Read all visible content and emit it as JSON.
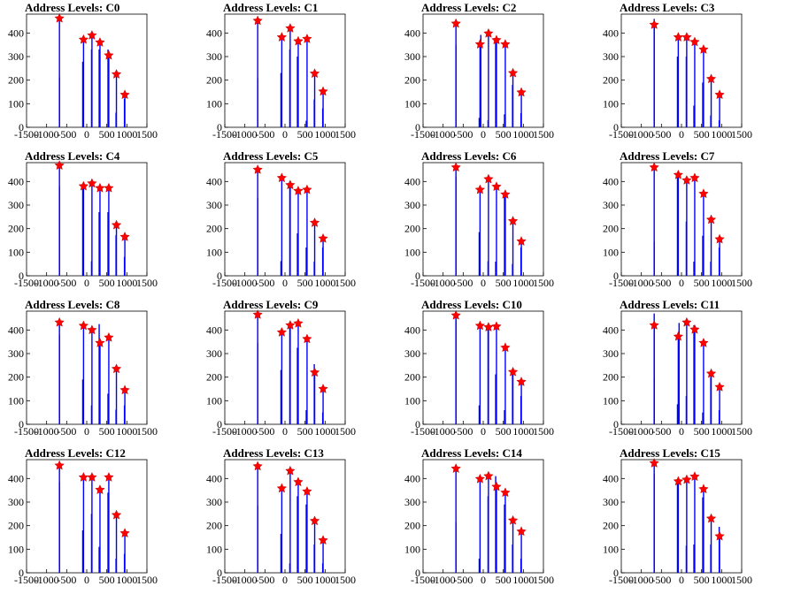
{
  "figure": {
    "title_prefix": "Address Levels: ",
    "x_ticks": [
      -1500,
      -1000,
      -500,
      0,
      500,
      1000,
      1500
    ],
    "x_tick_labels": [
      "-1500",
      "-1000",
      "-500",
      "0",
      "500",
      "1000",
      "1500"
    ],
    "y_ticks": [
      0,
      100,
      200,
      300,
      400
    ],
    "y_tick_labels": [
      "0",
      "100",
      "200",
      "300",
      "400"
    ],
    "colors": {
      "spike": "#0000ff",
      "marker": "#ff0000",
      "axis": "#000000"
    }
  },
  "chart_data": [
    {
      "type": "bar",
      "title": "Address Levels: C0",
      "xlim": [
        -1500,
        1500
      ],
      "ylim": [
        0,
        480
      ],
      "grid": false,
      "peaks_x": [
        -680,
        -80,
        130,
        330,
        550,
        740,
        950
      ],
      "peaks_y": [
        462,
        372,
        390,
        360,
        305,
        225,
        138
      ],
      "spikes": [
        [
          -680,
          462
        ],
        [
          -680,
          212
        ],
        [
          -100,
          278
        ],
        [
          -80,
          372
        ],
        [
          120,
          330
        ],
        [
          130,
          390
        ],
        [
          310,
          330
        ],
        [
          330,
          360
        ],
        [
          530,
          330
        ],
        [
          550,
          305
        ],
        [
          730,
          62
        ],
        [
          740,
          225
        ],
        [
          940,
          120
        ],
        [
          950,
          138
        ]
      ]
    },
    {
      "type": "bar",
      "title": "Address Levels: C1",
      "xlim": [
        -1500,
        1500
      ],
      "ylim": [
        0,
        480
      ],
      "grid": false,
      "peaks_x": [
        -680,
        -80,
        130,
        330,
        550,
        740,
        950
      ],
      "peaks_y": [
        452,
        382,
        420,
        365,
        375,
        228,
        152
      ],
      "spikes": [
        [
          -680,
          452
        ],
        [
          -680,
          208
        ],
        [
          -100,
          230
        ],
        [
          -80,
          382
        ],
        [
          120,
          330
        ],
        [
          130,
          420
        ],
        [
          310,
          300
        ],
        [
          330,
          365
        ],
        [
          530,
          28
        ],
        [
          550,
          375
        ],
        [
          730,
          118
        ],
        [
          740,
          228
        ],
        [
          940,
          80
        ],
        [
          950,
          152
        ]
      ]
    },
    {
      "type": "bar",
      "title": "Address Levels: C2",
      "xlim": [
        -1500,
        1500
      ],
      "ylim": [
        0,
        480
      ],
      "grid": false,
      "peaks_x": [
        -680,
        -80,
        130,
        330,
        550,
        740,
        950
      ],
      "peaks_y": [
        440,
        352,
        398,
        370,
        352,
        230,
        148
      ],
      "spikes": [
        [
          -680,
          440
        ],
        [
          -680,
          350
        ],
        [
          -100,
          40
        ],
        [
          -80,
          352
        ],
        [
          -60,
          392
        ],
        [
          120,
          30
        ],
        [
          130,
          398
        ],
        [
          310,
          360
        ],
        [
          330,
          370
        ],
        [
          530,
          55
        ],
        [
          550,
          352
        ],
        [
          730,
          180
        ],
        [
          740,
          230
        ],
        [
          940,
          60
        ],
        [
          950,
          148
        ]
      ]
    },
    {
      "type": "bar",
      "title": "Address Levels: C3",
      "xlim": [
        -1500,
        1500
      ],
      "ylim": [
        0,
        480
      ],
      "grid": false,
      "peaks_x": [
        -680,
        -80,
        130,
        330,
        550,
        740,
        950
      ],
      "peaks_y": [
        435,
        382,
        382,
        362,
        330,
        205,
        138
      ],
      "spikes": [
        [
          -680,
          435
        ],
        [
          -680,
          460
        ],
        [
          -100,
          300
        ],
        [
          -80,
          382
        ],
        [
          120,
          300
        ],
        [
          130,
          382
        ],
        [
          310,
          92
        ],
        [
          330,
          362
        ],
        [
          530,
          190
        ],
        [
          550,
          330
        ],
        [
          730,
          50
        ],
        [
          740,
          205
        ],
        [
          940,
          30
        ],
        [
          950,
          138
        ]
      ]
    },
    {
      "type": "bar",
      "title": "Address Levels: C4",
      "xlim": [
        -1500,
        1500
      ],
      "ylim": [
        0,
        480
      ],
      "grid": false,
      "peaks_x": [
        -680,
        -80,
        130,
        330,
        550,
        740,
        950
      ],
      "peaks_y": [
        468,
        380,
        392,
        372,
        372,
        215,
        165
      ],
      "spikes": [
        [
          -680,
          468
        ],
        [
          -680,
          380
        ],
        [
          -100,
          375
        ],
        [
          -80,
          380
        ],
        [
          120,
          62
        ],
        [
          130,
          392
        ],
        [
          310,
          270
        ],
        [
          330,
          372
        ],
        [
          530,
          270
        ],
        [
          550,
          372
        ],
        [
          730,
          172
        ],
        [
          740,
          215
        ],
        [
          940,
          80
        ],
        [
          950,
          165
        ]
      ]
    },
    {
      "type": "bar",
      "title": "Address Levels: C5",
      "xlim": [
        -1500,
        1500
      ],
      "ylim": [
        0,
        480
      ],
      "grid": false,
      "peaks_x": [
        -680,
        -80,
        130,
        330,
        550,
        740,
        950
      ],
      "peaks_y": [
        450,
        415,
        385,
        360,
        365,
        225,
        158
      ],
      "spikes": [
        [
          -680,
          450
        ],
        [
          -680,
          330
        ],
        [
          -100,
          62
        ],
        [
          -80,
          415
        ],
        [
          120,
          400
        ],
        [
          130,
          385
        ],
        [
          310,
          180
        ],
        [
          330,
          360
        ],
        [
          530,
          120
        ],
        [
          550,
          365
        ],
        [
          730,
          60
        ],
        [
          740,
          225
        ],
        [
          940,
          120
        ],
        [
          950,
          158
        ]
      ]
    },
    {
      "type": "bar",
      "title": "Address Levels: C6",
      "xlim": [
        -1500,
        1500
      ],
      "ylim": [
        0,
        480
      ],
      "grid": false,
      "peaks_x": [
        -680,
        -80,
        130,
        330,
        550,
        740,
        950
      ],
      "peaks_y": [
        460,
        365,
        410,
        378,
        345,
        232,
        146
      ],
      "spikes": [
        [
          -680,
          460
        ],
        [
          -680,
          420
        ],
        [
          -100,
          185
        ],
        [
          -80,
          365
        ],
        [
          120,
          62
        ],
        [
          130,
          410
        ],
        [
          310,
          60
        ],
        [
          330,
          378
        ],
        [
          530,
          340
        ],
        [
          550,
          345
        ],
        [
          730,
          50
        ],
        [
          740,
          232
        ],
        [
          940,
          120
        ],
        [
          950,
          146
        ]
      ]
    },
    {
      "type": "bar",
      "title": "Address Levels: C7",
      "xlim": [
        -1500,
        1500
      ],
      "ylim": [
        0,
        480
      ],
      "grid": false,
      "peaks_x": [
        -680,
        -80,
        130,
        330,
        550,
        740,
        950
      ],
      "peaks_y": [
        460,
        428,
        405,
        415,
        348,
        238,
        155
      ],
      "spikes": [
        [
          -680,
          460
        ],
        [
          -680,
          145
        ],
        [
          -100,
          420
        ],
        [
          -80,
          428
        ],
        [
          120,
          230
        ],
        [
          130,
          405
        ],
        [
          310,
          60
        ],
        [
          330,
          415
        ],
        [
          530,
          170
        ],
        [
          550,
          348
        ],
        [
          730,
          60
        ],
        [
          740,
          238
        ],
        [
          940,
          120
        ],
        [
          950,
          155
        ]
      ]
    },
    {
      "type": "bar",
      "title": "Address Levels: C8",
      "xlim": [
        -1500,
        1500
      ],
      "ylim": [
        0,
        480
      ],
      "grid": false,
      "peaks_x": [
        -680,
        -80,
        130,
        330,
        550,
        740,
        950
      ],
      "peaks_y": [
        432,
        418,
        400,
        345,
        368,
        235,
        145
      ],
      "spikes": [
        [
          -680,
          432
        ],
        [
          -680,
          380
        ],
        [
          -100,
          190
        ],
        [
          -80,
          418
        ],
        [
          120,
          80
        ],
        [
          130,
          400
        ],
        [
          310,
          425
        ],
        [
          330,
          345
        ],
        [
          530,
          130
        ],
        [
          550,
          368
        ],
        [
          730,
          62
        ],
        [
          740,
          235
        ],
        [
          940,
          80
        ],
        [
          950,
          145
        ]
      ]
    },
    {
      "type": "bar",
      "title": "Address Levels: C9",
      "xlim": [
        -1500,
        1500
      ],
      "ylim": [
        0,
        480
      ],
      "grid": false,
      "peaks_x": [
        -680,
        -80,
        130,
        330,
        550,
        740,
        950
      ],
      "peaks_y": [
        465,
        390,
        420,
        428,
        362,
        220,
        150
      ],
      "spikes": [
        [
          -680,
          465
        ],
        [
          -680,
          345
        ],
        [
          -100,
          230
        ],
        [
          -80,
          390
        ],
        [
          120,
          418
        ],
        [
          130,
          420
        ],
        [
          310,
          325
        ],
        [
          330,
          428
        ],
        [
          530,
          60
        ],
        [
          550,
          362
        ],
        [
          730,
          255
        ],
        [
          740,
          220
        ],
        [
          940,
          50
        ],
        [
          950,
          150
        ]
      ]
    },
    {
      "type": "bar",
      "title": "Address Levels: C10",
      "xlim": [
        -1500,
        1500
      ],
      "ylim": [
        0,
        480
      ],
      "grid": false,
      "peaks_x": [
        -680,
        -80,
        130,
        330,
        550,
        740,
        950
      ],
      "peaks_y": [
        462,
        418,
        412,
        415,
        325,
        222,
        180
      ],
      "spikes": [
        [
          -680,
          462
        ],
        [
          -680,
          440
        ],
        [
          -100,
          80
        ],
        [
          -80,
          418
        ],
        [
          120,
          400
        ],
        [
          130,
          412
        ],
        [
          310,
          212
        ],
        [
          330,
          415
        ],
        [
          530,
          60
        ],
        [
          550,
          325
        ],
        [
          730,
          210
        ],
        [
          740,
          222
        ],
        [
          940,
          120
        ],
        [
          950,
          180
        ]
      ]
    },
    {
      "type": "bar",
      "title": "Address Levels: C11",
      "xlim": [
        -1500,
        1500
      ],
      "ylim": [
        0,
        480
      ],
      "grid": false,
      "peaks_x": [
        -680,
        -80,
        130,
        330,
        550,
        740,
        950
      ],
      "peaks_y": [
        420,
        372,
        432,
        402,
        345,
        215,
        158
      ],
      "spikes": [
        [
          -680,
          420
        ],
        [
          -680,
          470
        ],
        [
          -680,
          200
        ],
        [
          -100,
          85
        ],
        [
          -80,
          372
        ],
        [
          -60,
          430
        ],
        [
          120,
          120
        ],
        [
          130,
          432
        ],
        [
          310,
          420
        ],
        [
          330,
          402
        ],
        [
          530,
          50
        ],
        [
          550,
          345
        ],
        [
          730,
          200
        ],
        [
          740,
          215
        ],
        [
          940,
          60
        ],
        [
          950,
          158
        ]
      ]
    },
    {
      "type": "bar",
      "title": "Address Levels: C12",
      "xlim": [
        -1500,
        1500
      ],
      "ylim": [
        0,
        480
      ],
      "grid": false,
      "peaks_x": [
        -680,
        -80,
        130,
        330,
        550,
        740,
        950
      ],
      "peaks_y": [
        455,
        405,
        405,
        352,
        405,
        245,
        168
      ],
      "spikes": [
        [
          -680,
          455
        ],
        [
          -680,
          385
        ],
        [
          -100,
          180
        ],
        [
          -80,
          405
        ],
        [
          120,
          250
        ],
        [
          130,
          405
        ],
        [
          310,
          110
        ],
        [
          330,
          352
        ],
        [
          530,
          340
        ],
        [
          550,
          405
        ],
        [
          730,
          60
        ],
        [
          740,
          245
        ],
        [
          940,
          80
        ],
        [
          950,
          168
        ]
      ]
    },
    {
      "type": "bar",
      "title": "Address Levels: C13",
      "xlim": [
        -1500,
        1500
      ],
      "ylim": [
        0,
        480
      ],
      "grid": false,
      "peaks_x": [
        -680,
        -80,
        130,
        330,
        550,
        740,
        950
      ],
      "peaks_y": [
        452,
        358,
        432,
        385,
        345,
        220,
        138
      ],
      "spikes": [
        [
          -680,
          452
        ],
        [
          -680,
          285
        ],
        [
          -100,
          165
        ],
        [
          -80,
          358
        ],
        [
          120,
          40
        ],
        [
          130,
          432
        ],
        [
          310,
          325
        ],
        [
          330,
          385
        ],
        [
          530,
          290
        ],
        [
          550,
          345
        ],
        [
          730,
          120
        ],
        [
          740,
          220
        ],
        [
          940,
          40
        ],
        [
          950,
          138
        ]
      ]
    },
    {
      "type": "bar",
      "title": "Address Levels: C14",
      "xlim": [
        -1500,
        1500
      ],
      "ylim": [
        0,
        480
      ],
      "grid": false,
      "peaks_x": [
        -680,
        -80,
        130,
        330,
        550,
        740,
        950
      ],
      "peaks_y": [
        442,
        398,
        410,
        365,
        340,
        222,
        175
      ],
      "spikes": [
        [
          -680,
          442
        ],
        [
          -680,
          215
        ],
        [
          -100,
          60
        ],
        [
          -80,
          398
        ],
        [
          120,
          325
        ],
        [
          130,
          410
        ],
        [
          310,
          410
        ],
        [
          330,
          365
        ],
        [
          530,
          290
        ],
        [
          550,
          340
        ],
        [
          730,
          120
        ],
        [
          740,
          222
        ],
        [
          940,
          60
        ],
        [
          950,
          175
        ]
      ]
    },
    {
      "type": "bar",
      "title": "Address Levels: C15",
      "xlim": [
        -1500,
        1500
      ],
      "ylim": [
        0,
        480
      ],
      "grid": false,
      "peaks_x": [
        -680,
        -80,
        130,
        330,
        550,
        740,
        950
      ],
      "peaks_y": [
        465,
        388,
        395,
        408,
        355,
        230,
        155
      ],
      "spikes": [
        [
          -680,
          465
        ],
        [
          -680,
          420
        ],
        [
          -100,
          380
        ],
        [
          -80,
          388
        ],
        [
          120,
          115
        ],
        [
          130,
          395
        ],
        [
          310,
          120
        ],
        [
          330,
          408
        ],
        [
          530,
          320
        ],
        [
          550,
          355
        ],
        [
          730,
          120
        ],
        [
          740,
          230
        ],
        [
          940,
          195
        ],
        [
          950,
          155
        ]
      ]
    }
  ]
}
